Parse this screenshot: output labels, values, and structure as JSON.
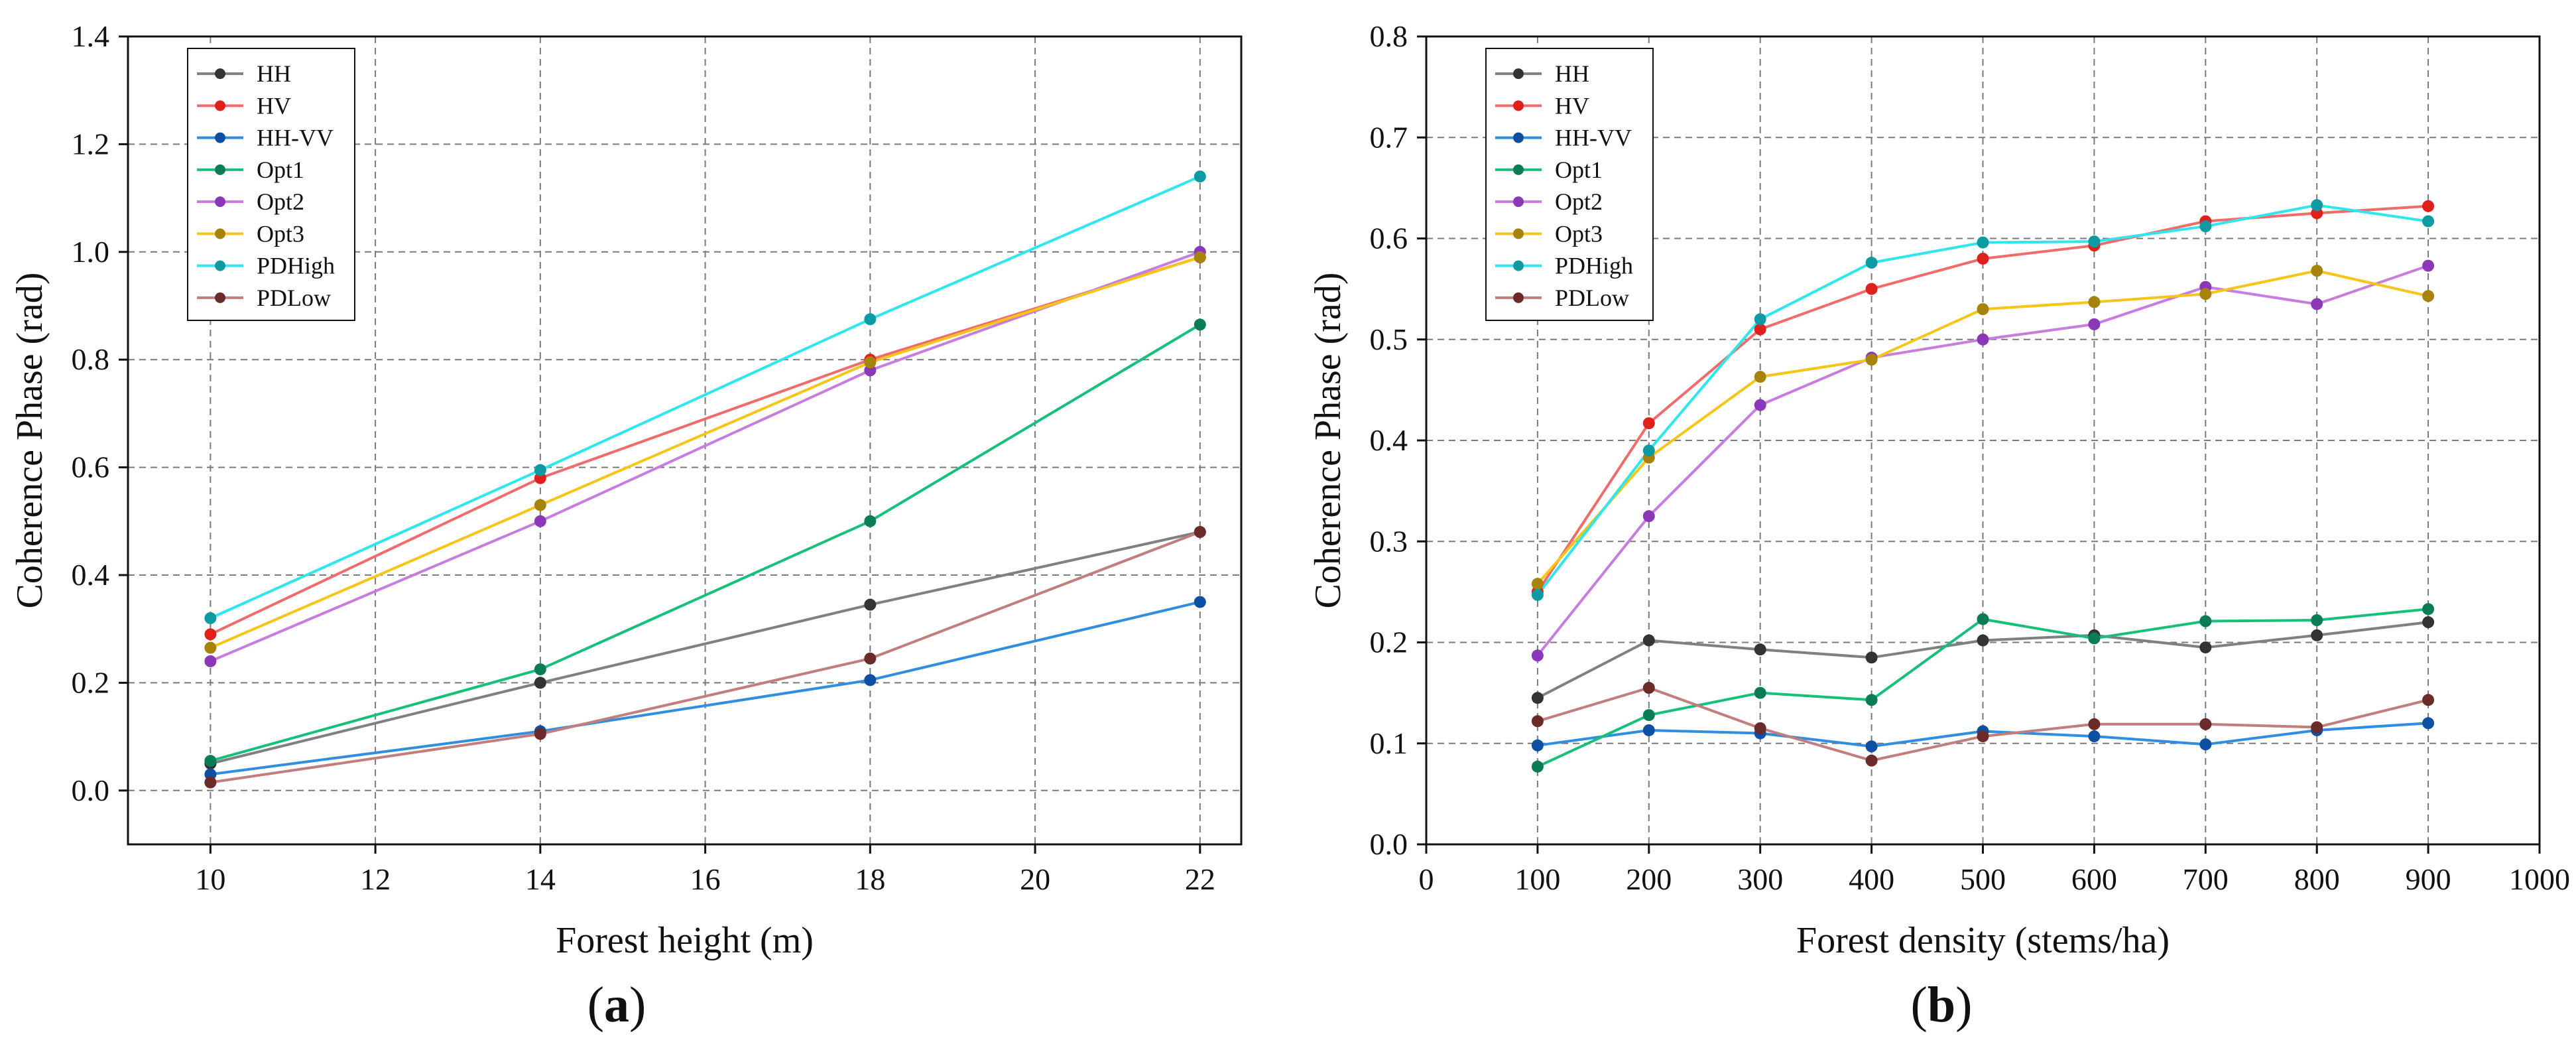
{
  "chart_data": [
    {
      "type": "line",
      "panel_label": "(a)",
      "xlabel": "Forest height (m)",
      "ylabel": "Coherence Phase (rad)",
      "xlim": [
        9,
        22.5
      ],
      "ylim": [
        -0.1,
        1.4
      ],
      "xticks": [
        10,
        12,
        14,
        16,
        18,
        20,
        22
      ],
      "yticks": [
        0.0,
        0.2,
        0.4,
        0.6,
        0.8,
        1.0,
        1.2,
        1.4
      ],
      "ytick_labels": [
        "0.0",
        "0.2",
        "0.4",
        "0.6",
        "0.8",
        "1.0",
        "1.2",
        "1.4"
      ],
      "grid": true,
      "legend_position": "top-left",
      "x": [
        10,
        14,
        18,
        22
      ],
      "series": [
        {
          "name": "HH",
          "line_color": "#808080",
          "marker_color": "#333333",
          "values": [
            0.05,
            0.2,
            0.345,
            0.48
          ]
        },
        {
          "name": "HV",
          "line_color": "#f26b6b",
          "marker_color": "#e0201b",
          "values": [
            0.29,
            0.58,
            0.8,
            0.99
          ]
        },
        {
          "name": "HH-VV",
          "line_color": "#2f8ee0",
          "marker_color": "#0d4fa0",
          "values": [
            0.03,
            0.11,
            0.205,
            0.35
          ]
        },
        {
          "name": "Opt1",
          "line_color": "#16c079",
          "marker_color": "#0a7d57",
          "values": [
            0.055,
            0.225,
            0.5,
            0.865
          ]
        },
        {
          "name": "Opt2",
          "line_color": "#c77ce0",
          "marker_color": "#8a38b8",
          "values": [
            0.24,
            0.5,
            0.78,
            1.0
          ]
        },
        {
          "name": "Opt3",
          "line_color": "#f5c518",
          "marker_color": "#a7830a",
          "values": [
            0.265,
            0.53,
            0.795,
            0.99
          ]
        },
        {
          "name": "PDHigh",
          "line_color": "#2ee6ee",
          "marker_color": "#0e9aa3",
          "values": [
            0.32,
            0.595,
            0.875,
            1.14
          ]
        },
        {
          "name": "PDLow",
          "line_color": "#c27d7d",
          "marker_color": "#6b2b2b",
          "values": [
            0.015,
            0.105,
            0.245,
            0.48
          ]
        }
      ]
    },
    {
      "type": "line",
      "panel_label": "(b)",
      "xlabel": "Forest density (stems/ha)",
      "ylabel": "Coherence Phase (rad)",
      "xlim": [
        0,
        1000
      ],
      "ylim": [
        0,
        0.8
      ],
      "xticks": [
        0,
        100,
        200,
        300,
        400,
        500,
        600,
        700,
        800,
        900,
        1000
      ],
      "yticks": [
        0.0,
        0.1,
        0.2,
        0.3,
        0.4,
        0.5,
        0.6,
        0.7,
        0.8
      ],
      "ytick_labels": [
        "0.0",
        "0.1",
        "0.2",
        "0.3",
        "0.4",
        "0.5",
        "0.6",
        "0.7",
        "0.8"
      ],
      "grid": true,
      "legend_position": "top-left",
      "x": [
        100,
        200,
        300,
        400,
        500,
        600,
        700,
        800,
        900
      ],
      "series": [
        {
          "name": "HH",
          "line_color": "#808080",
          "marker_color": "#333333",
          "values": [
            0.145,
            0.202,
            0.193,
            0.185,
            0.202,
            0.207,
            0.195,
            0.207,
            0.22
          ]
        },
        {
          "name": "HV",
          "line_color": "#f26b6b",
          "marker_color": "#e0201b",
          "values": [
            0.25,
            0.417,
            0.51,
            0.55,
            0.58,
            0.593,
            0.617,
            0.625,
            0.632
          ]
        },
        {
          "name": "HH-VV",
          "line_color": "#2f8ee0",
          "marker_color": "#0d4fa0",
          "values": [
            0.098,
            0.113,
            0.11,
            0.097,
            0.112,
            0.107,
            0.099,
            0.113,
            0.12
          ]
        },
        {
          "name": "Opt1",
          "line_color": "#16c079",
          "marker_color": "#0a7d57",
          "values": [
            0.077,
            0.128,
            0.15,
            0.143,
            0.223,
            0.204,
            0.221,
            0.222,
            0.233
          ]
        },
        {
          "name": "Opt2",
          "line_color": "#c77ce0",
          "marker_color": "#8a38b8",
          "values": [
            0.187,
            0.325,
            0.435,
            0.482,
            0.5,
            0.515,
            0.552,
            0.535,
            0.573
          ]
        },
        {
          "name": "Opt3",
          "line_color": "#f5c518",
          "marker_color": "#a7830a",
          "values": [
            0.258,
            0.383,
            0.463,
            0.48,
            0.53,
            0.537,
            0.545,
            0.568,
            0.543
          ]
        },
        {
          "name": "PDHigh",
          "line_color": "#2ee6ee",
          "marker_color": "#0e9aa3",
          "values": [
            0.247,
            0.39,
            0.52,
            0.576,
            0.596,
            0.597,
            0.612,
            0.633,
            0.617
          ]
        },
        {
          "name": "PDLow",
          "line_color": "#c27d7d",
          "marker_color": "#6b2b2b",
          "values": [
            0.122,
            0.155,
            0.115,
            0.083,
            0.107,
            0.119,
            0.119,
            0.116,
            0.143
          ]
        }
      ]
    }
  ]
}
